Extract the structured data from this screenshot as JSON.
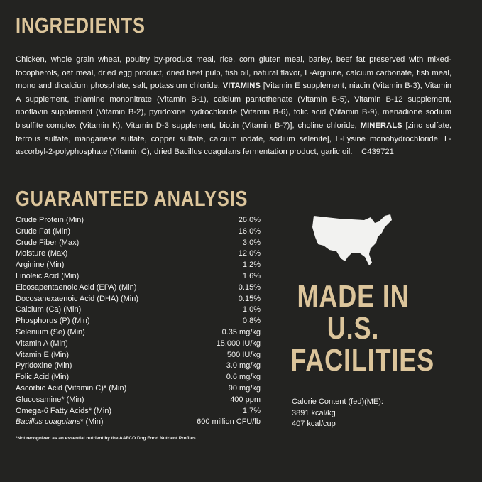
{
  "ingredients": {
    "heading": "INGREDIENTS",
    "part1": "Chicken, whole grain wheat, poultry by-product meal, rice, corn gluten meal, barley, beef fat preserved with mixed-tocopherols, oat meal, dried egg product, dried beet pulp, fish oil, natural flavor, L-Arginine, calcium carbonate, fish meal, mono and dicalcium phosphate, salt, potassium chloride,",
    "vitamins_label": "VITAMINS",
    "part2": "[Vitamin E supplement, niacin (Vitamin B-3), Vitamin A supplement, thiamine mononitrate (Vitamin B-1), calcium pantothenate (Vitamin B-5), Vitamin B-12 supplement, riboflavin supplement (Vitamin B-2), pyridoxine hydrochloride (Vitamin B-6), folic acid (Vitamin B-9), menadione sodium bisulfite complex (Vitamin K), Vitamin D-3 supplement, biotin (Vitamin B-7)], choline chloride,",
    "minerals_label": "MINERALS",
    "part3": "[zinc sulfate, ferrous sulfate, manganese sulfate, copper sulfate, calcium iodate, sodium selenite], L-Lysine monohydrochloride, L-ascorbyl-2-polyphosphate (Vitamin C), dried Bacillus coagulans fermentation product, garlic oil.",
    "code": "C439721"
  },
  "analysis": {
    "heading": "GUARANTEED ANALYSIS",
    "rows": [
      {
        "label": "Crude Protein (Min)",
        "value": "26.0%"
      },
      {
        "label": "Crude Fat (Min)",
        "value": "16.0%"
      },
      {
        "label": "Crude Fiber (Max)",
        "value": "3.0%"
      },
      {
        "label": "Moisture (Max)",
        "value": "12.0%"
      },
      {
        "label": "Arginine (Min)",
        "value": "1.2%"
      },
      {
        "label": "Linoleic Acid (Min)",
        "value": "1.6%"
      },
      {
        "label": "Eicosapentaenoic Acid (EPA) (Min)",
        "value": "0.15%"
      },
      {
        "label": "Docosahexaenoic Acid (DHA) (Min)",
        "value": "0.15%"
      },
      {
        "label": "Calcium (Ca) (Min)",
        "value": "1.0%"
      },
      {
        "label": "Phosphorus (P) (Min)",
        "value": "0.8%"
      },
      {
        "label": "Selenium (Se) (Min)",
        "value": "0.35 mg/kg"
      },
      {
        "label": "Vitamin A (Min)",
        "value": "15,000 IU/kg"
      },
      {
        "label": "Vitamin E (Min)",
        "value": "500 IU/kg"
      },
      {
        "label": "Pyridoxine (Min)",
        "value": "3.0 mg/kg"
      },
      {
        "label": "Folic Acid (Min)",
        "value": "0.6 mg/kg"
      },
      {
        "label": "Ascorbic Acid (Vitamin C)* (Min)",
        "value": "90 mg/kg"
      },
      {
        "label": "Glucosamine* (Min)",
        "value": "400 ppm"
      },
      {
        "label": "Omega-6 Fatty Acids* (Min)",
        "value": "1.7%"
      }
    ],
    "last_row": {
      "label_italic": "Bacillus coagulans",
      "label_rest": "* (Min)",
      "value": "600 million CFU/lb"
    },
    "footnote": "*Not recognized as an essential nutrient by the AAFCO Dog Food Nutrient Profiles."
  },
  "made_in": {
    "line1": "MADE IN",
    "line2": "U.S.",
    "line3": "FACILITIES",
    "icon": "usa-map-icon"
  },
  "calorie": {
    "label": "Calorie Content (fed)(ME):",
    "per_kg": "3891 kcal/kg",
    "per_cup": "407 kcal/cup"
  },
  "colors": {
    "background": "#232321",
    "accent": "#dcc59b",
    "text": "#f2f2f0"
  }
}
